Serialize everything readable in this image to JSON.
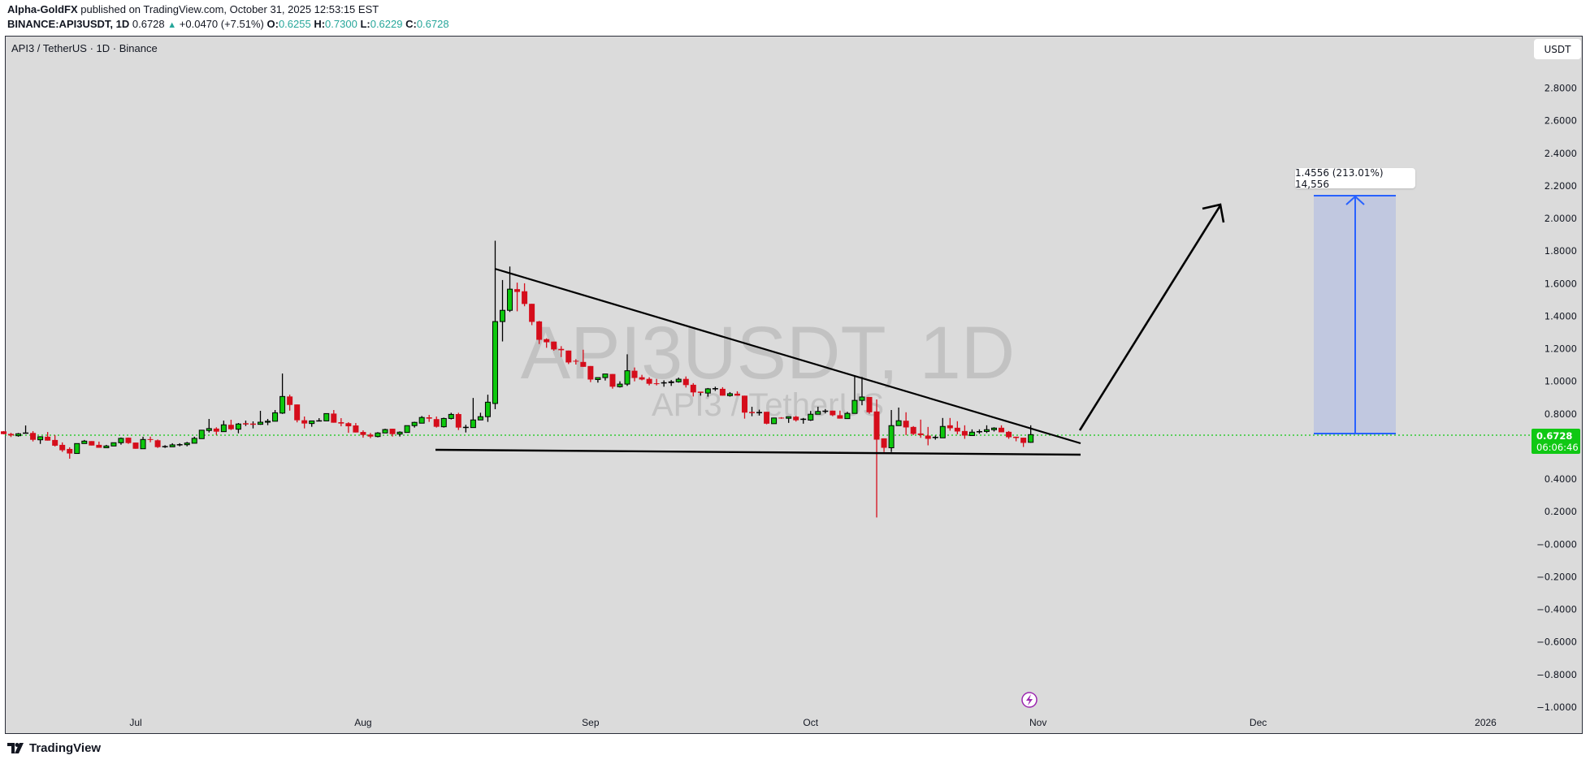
{
  "header": {
    "author": "Alpha-GoldFX",
    "published": "published on TradingView.com, October 31, 2025 12:53:15 EST",
    "symbol": "BINANCE:API3USDT, 1D",
    "last": "0.6728",
    "change": "+0.0470 (+7.51%)",
    "open_label": "O:",
    "open": "0.6255",
    "high_label": "H:",
    "high": "0.7300",
    "low_label": "L:",
    "low": "0.6229",
    "close_label": "C:",
    "close": "0.6728"
  },
  "chart_title": "API3 / TetherUS · 1D · Binance",
  "currency_button": "USDT",
  "watermark": {
    "symbol": "API3USDT, 1D",
    "name": "API3 / TetherUS"
  },
  "price_badge": {
    "price": "0.6728",
    "countdown": "06:06:46",
    "color": "#10c814"
  },
  "measure_label": "1.4556 (213.01%) 14,556",
  "footer_brand": "TradingView",
  "colors": {
    "up": "#0dc80d",
    "down": "#d50d1b",
    "background": "#dbdbdb",
    "measure_fill": "#c1c8e0",
    "measure_line": "#2962ff"
  },
  "chart_data": {
    "type": "candlestick",
    "title": "API3 / TetherUS · 1D · Binance",
    "y_axis": {
      "side": "right",
      "ylim": [
        -1.0,
        2.8
      ],
      "ticks": [
        "2.8000",
        "2.6000",
        "2.4000",
        "2.2000",
        "2.0000",
        "1.8000",
        "1.6000",
        "1.4000",
        "1.2000",
        "1.0000",
        "0.8000",
        "0.4000",
        "0.2000",
        "−0.0000",
        "−0.2000",
        "−0.4000",
        "−0.6000",
        "−0.8000",
        "−1.0000"
      ],
      "tick_values": [
        2.8,
        2.6,
        2.4,
        2.2,
        2.0,
        1.8,
        1.6,
        1.4,
        1.2,
        1.0,
        0.8,
        0.4,
        0.2,
        0,
        -0.2,
        -0.4,
        -0.6,
        -0.8,
        -1.0
      ]
    },
    "x_axis": {
      "ticks": [
        {
          "label": "Jul",
          "date": "2025-07-01"
        },
        {
          "label": "Aug",
          "date": "2025-08-01"
        },
        {
          "label": "Sep",
          "date": "2025-09-01"
        },
        {
          "label": "Oct",
          "date": "2025-10-01"
        },
        {
          "label": "Nov",
          "date": "2025-11-01"
        },
        {
          "label": "Dec",
          "date": "2025-12-01"
        },
        {
          "label": "2026",
          "date": "2026-01-01"
        }
      ]
    },
    "last_price": 0.6728,
    "columns": [
      "date",
      "open",
      "high",
      "low",
      "close"
    ],
    "candles": [
      [
        "2025-06-13",
        0.693,
        0.695,
        0.675,
        0.676
      ],
      [
        "2025-06-14",
        0.677,
        0.684,
        0.658,
        0.668
      ],
      [
        "2025-06-15",
        0.666,
        0.683,
        0.66,
        0.678
      ],
      [
        "2025-06-16",
        0.681,
        0.729,
        0.679,
        0.683
      ],
      [
        "2025-06-17",
        0.683,
        0.694,
        0.631,
        0.641
      ],
      [
        "2025-06-18",
        0.641,
        0.66,
        0.616,
        0.66
      ],
      [
        "2025-06-19",
        0.66,
        0.689,
        0.636,
        0.636
      ],
      [
        "2025-06-20",
        0.64,
        0.67,
        0.6,
        0.605
      ],
      [
        "2025-06-21",
        0.61,
        0.625,
        0.567,
        0.577
      ],
      [
        "2025-06-22",
        0.585,
        0.595,
        0.525,
        0.557
      ],
      [
        "2025-06-23",
        0.557,
        0.618,
        0.557,
        0.618
      ],
      [
        "2025-06-24",
        0.618,
        0.64,
        0.618,
        0.633
      ],
      [
        "2025-06-25",
        0.633,
        0.633,
        0.606,
        0.606
      ],
      [
        "2025-06-26",
        0.61,
        0.63,
        0.592,
        0.592
      ],
      [
        "2025-06-27",
        0.592,
        0.61,
        0.592,
        0.603
      ],
      [
        "2025-06-28",
        0.603,
        0.623,
        0.603,
        0.623
      ],
      [
        "2025-06-29",
        0.623,
        0.655,
        0.611,
        0.65
      ],
      [
        "2025-06-30",
        0.654,
        0.655,
        0.616,
        0.621
      ],
      [
        "2025-07-01",
        0.624,
        0.624,
        0.586,
        0.586
      ],
      [
        "2025-07-02",
        0.586,
        0.66,
        0.586,
        0.643
      ],
      [
        "2025-07-03",
        0.645,
        0.66,
        0.626,
        0.64
      ],
      [
        "2025-07-04",
        0.638,
        0.643,
        0.591,
        0.596
      ],
      [
        "2025-07-05",
        0.598,
        0.608,
        0.591,
        0.6
      ],
      [
        "2025-07-06",
        0.598,
        0.62,
        0.598,
        0.61
      ],
      [
        "2025-07-07",
        0.61,
        0.62,
        0.601,
        0.611
      ],
      [
        "2025-07-08",
        0.611,
        0.628,
        0.601,
        0.621
      ],
      [
        "2025-07-09",
        0.62,
        0.66,
        0.62,
        0.65
      ],
      [
        "2025-07-10",
        0.648,
        0.702,
        0.648,
        0.7
      ],
      [
        "2025-07-11",
        0.698,
        0.769,
        0.686,
        0.71
      ],
      [
        "2025-07-12",
        0.71,
        0.718,
        0.671,
        0.691
      ],
      [
        "2025-07-13",
        0.691,
        0.759,
        0.691,
        0.733
      ],
      [
        "2025-07-14",
        0.733,
        0.764,
        0.701,
        0.706
      ],
      [
        "2025-07-15",
        0.706,
        0.744,
        0.681,
        0.738
      ],
      [
        "2025-07-16",
        0.74,
        0.759,
        0.726,
        0.738
      ],
      [
        "2025-07-17",
        0.738,
        0.754,
        0.711,
        0.736
      ],
      [
        "2025-07-18",
        0.736,
        0.819,
        0.733,
        0.749
      ],
      [
        "2025-07-19",
        0.749,
        0.769,
        0.731,
        0.755
      ],
      [
        "2025-07-20",
        0.755,
        0.824,
        0.755,
        0.807
      ],
      [
        "2025-07-21",
        0.805,
        1.048,
        0.8,
        0.907
      ],
      [
        "2025-07-22",
        0.907,
        0.918,
        0.82,
        0.855
      ],
      [
        "2025-07-23",
        0.858,
        0.858,
        0.748,
        0.761
      ],
      [
        "2025-07-24",
        0.761,
        0.784,
        0.711,
        0.741
      ],
      [
        "2025-07-25",
        0.741,
        0.757,
        0.721,
        0.757
      ],
      [
        "2025-07-26",
        0.757,
        0.774,
        0.757,
        0.757
      ],
      [
        "2025-07-27",
        0.757,
        0.802,
        0.757,
        0.802
      ],
      [
        "2025-07-28",
        0.802,
        0.824,
        0.746,
        0.746
      ],
      [
        "2025-07-29",
        0.749,
        0.774,
        0.724,
        0.741
      ],
      [
        "2025-07-30",
        0.743,
        0.749,
        0.684,
        0.724
      ],
      [
        "2025-07-31",
        0.729,
        0.744,
        0.686,
        0.686
      ],
      [
        "2025-08-01",
        0.689,
        0.699,
        0.654,
        0.671
      ],
      [
        "2025-08-02",
        0.673,
        0.683,
        0.651,
        0.661
      ],
      [
        "2025-08-03",
        0.661,
        0.688,
        0.656,
        0.683
      ],
      [
        "2025-08-04",
        0.683,
        0.709,
        0.683,
        0.704
      ],
      [
        "2025-08-05",
        0.709,
        0.709,
        0.661,
        0.676
      ],
      [
        "2025-08-06",
        0.676,
        0.693,
        0.661,
        0.688
      ],
      [
        "2025-08-07",
        0.686,
        0.728,
        0.686,
        0.728
      ],
      [
        "2025-08-08",
        0.728,
        0.752,
        0.716,
        0.748
      ],
      [
        "2025-08-09",
        0.743,
        0.787,
        0.743,
        0.778
      ],
      [
        "2025-08-10",
        0.779,
        0.794,
        0.751,
        0.771
      ],
      [
        "2025-08-11",
        0.768,
        0.784,
        0.716,
        0.721
      ],
      [
        "2025-08-12",
        0.721,
        0.777,
        0.716,
        0.772
      ],
      [
        "2025-08-13",
        0.772,
        0.807,
        0.766,
        0.797
      ],
      [
        "2025-08-14",
        0.799,
        0.807,
        0.701,
        0.716
      ],
      [
        "2025-08-15",
        0.716,
        0.733,
        0.686,
        0.718
      ],
      [
        "2025-08-16",
        0.716,
        0.898,
        0.716,
        0.763
      ],
      [
        "2025-08-17",
        0.763,
        0.807,
        0.763,
        0.783
      ],
      [
        "2025-08-18",
        0.783,
        0.918,
        0.751,
        0.872
      ],
      [
        "2025-08-19",
        0.864,
        1.863,
        0.829,
        1.367
      ],
      [
        "2025-08-20",
        1.367,
        1.622,
        1.245,
        1.436
      ],
      [
        "2025-08-21",
        1.436,
        1.705,
        1.426,
        1.566
      ],
      [
        "2025-08-22",
        1.566,
        1.606,
        1.43,
        1.549
      ],
      [
        "2025-08-23",
        1.553,
        1.602,
        1.461,
        1.475
      ],
      [
        "2025-08-24",
        1.476,
        1.476,
        1.345,
        1.365
      ],
      [
        "2025-08-25",
        1.368,
        1.371,
        1.229,
        1.255
      ],
      [
        "2025-08-26",
        1.259,
        1.264,
        1.206,
        1.24
      ],
      [
        "2025-08-27",
        1.244,
        1.244,
        1.188,
        1.196
      ],
      [
        "2025-08-28",
        1.199,
        1.216,
        1.149,
        1.191
      ],
      [
        "2025-08-29",
        1.189,
        1.189,
        1.106,
        1.116
      ],
      [
        "2025-08-30",
        1.126,
        1.136,
        1.103,
        1.121
      ],
      [
        "2025-08-31",
        1.119,
        1.194,
        1.089,
        1.089
      ],
      [
        "2025-09-01",
        1.094,
        1.094,
        0.995,
        1.011
      ],
      [
        "2025-09-02",
        1.011,
        1.023,
        0.992,
        1.023
      ],
      [
        "2025-09-03",
        1.023,
        1.045,
        1.005,
        1.045
      ],
      [
        "2025-09-04",
        1.045,
        1.045,
        0.955,
        0.967
      ],
      [
        "2025-09-05",
        0.967,
        1.0,
        0.962,
        0.983
      ],
      [
        "2025-09-06",
        0.983,
        1.166,
        0.972,
        1.065
      ],
      [
        "2025-09-07",
        1.065,
        1.085,
        1.0,
        1.021
      ],
      [
        "2025-09-08",
        1.025,
        1.04,
        1.006,
        1.011
      ],
      [
        "2025-09-09",
        1.015,
        1.025,
        0.975,
        0.985
      ],
      [
        "2025-09-10",
        0.988,
        1.015,
        0.975,
        0.984
      ],
      [
        "2025-09-11",
        0.99,
        1.006,
        0.967,
        0.991
      ],
      [
        "2025-09-12",
        0.993,
        1.008,
        0.972,
        0.997
      ],
      [
        "2025-09-13",
        0.997,
        1.023,
        0.992,
        1.013
      ],
      [
        "2025-09-14",
        1.015,
        1.03,
        0.962,
        0.977
      ],
      [
        "2025-09-15",
        0.979,
        0.989,
        0.907,
        0.932
      ],
      [
        "2025-09-16",
        0.934,
        0.934,
        0.912,
        0.932
      ],
      [
        "2025-09-17",
        0.928,
        0.959,
        0.906,
        0.954
      ],
      [
        "2025-09-18",
        0.954,
        0.967,
        0.941,
        0.955
      ],
      [
        "2025-09-19",
        0.954,
        0.964,
        0.912,
        0.912
      ],
      [
        "2025-09-20",
        0.912,
        0.934,
        0.906,
        0.924
      ],
      [
        "2025-09-21",
        0.924,
        0.939,
        0.912,
        0.912
      ],
      [
        "2025-09-22",
        0.912,
        0.912,
        0.771,
        0.808
      ],
      [
        "2025-09-23",
        0.81,
        0.844,
        0.786,
        0.807
      ],
      [
        "2025-09-24",
        0.807,
        0.826,
        0.79,
        0.809
      ],
      [
        "2025-09-25",
        0.813,
        0.813,
        0.736,
        0.74
      ],
      [
        "2025-09-26",
        0.74,
        0.777,
        0.74,
        0.775
      ],
      [
        "2025-09-27",
        0.777,
        0.78,
        0.77,
        0.773
      ],
      [
        "2025-09-28",
        0.773,
        0.783,
        0.745,
        0.783
      ],
      [
        "2025-09-29",
        0.783,
        0.788,
        0.753,
        0.761
      ],
      [
        "2025-09-30",
        0.766,
        0.775,
        0.74,
        0.768
      ],
      [
        "2025-10-01",
        0.762,
        0.818,
        0.757,
        0.798
      ],
      [
        "2025-10-02",
        0.798,
        0.844,
        0.798,
        0.815
      ],
      [
        "2025-10-03",
        0.816,
        0.83,
        0.803,
        0.817
      ],
      [
        "2025-10-04",
        0.82,
        0.82,
        0.786,
        0.792
      ],
      [
        "2025-10-05",
        0.792,
        0.82,
        0.771,
        0.771
      ],
      [
        "2025-10-06",
        0.771,
        0.813,
        0.771,
        0.803
      ],
      [
        "2025-10-07",
        0.803,
        1.032,
        0.803,
        0.883
      ],
      [
        "2025-10-08",
        0.883,
        1.027,
        0.853,
        0.904
      ],
      [
        "2025-10-09",
        0.904,
        0.904,
        0.801,
        0.81
      ],
      [
        "2025-10-10",
        0.815,
        0.889,
        0.164,
        0.642
      ],
      [
        "2025-10-11",
        0.65,
        0.65,
        0.566,
        0.592
      ],
      [
        "2025-10-12",
        0.592,
        0.824,
        0.566,
        0.728
      ],
      [
        "2025-10-13",
        0.728,
        0.839,
        0.728,
        0.758
      ],
      [
        "2025-10-14",
        0.758,
        0.81,
        0.67,
        0.717
      ],
      [
        "2025-10-15",
        0.72,
        0.725,
        0.67,
        0.677
      ],
      [
        "2025-10-16",
        0.68,
        0.765,
        0.653,
        0.67
      ],
      [
        "2025-10-17",
        0.667,
        0.72,
        0.607,
        0.647
      ],
      [
        "2025-10-18",
        0.655,
        0.667,
        0.642,
        0.656
      ],
      [
        "2025-10-19",
        0.653,
        0.775,
        0.653,
        0.723
      ],
      [
        "2025-10-20",
        0.73,
        0.775,
        0.697,
        0.712
      ],
      [
        "2025-10-21",
        0.715,
        0.755,
        0.675,
        0.692
      ],
      [
        "2025-10-22",
        0.695,
        0.73,
        0.647,
        0.667
      ],
      [
        "2025-10-23",
        0.667,
        0.705,
        0.667,
        0.688
      ],
      [
        "2025-10-24",
        0.69,
        0.705,
        0.678,
        0.691
      ],
      [
        "2025-10-25",
        0.692,
        0.73,
        0.683,
        0.703
      ],
      [
        "2025-10-26",
        0.703,
        0.718,
        0.692,
        0.713
      ],
      [
        "2025-10-27",
        0.715,
        0.73,
        0.687,
        0.687
      ],
      [
        "2025-10-28",
        0.69,
        0.695,
        0.647,
        0.657
      ],
      [
        "2025-10-29",
        0.66,
        0.66,
        0.632,
        0.652
      ],
      [
        "2025-10-30",
        0.654,
        0.654,
        0.597,
        0.622
      ],
      [
        "2025-10-31",
        0.6255,
        0.73,
        0.6229,
        0.6728
      ]
    ]
  }
}
